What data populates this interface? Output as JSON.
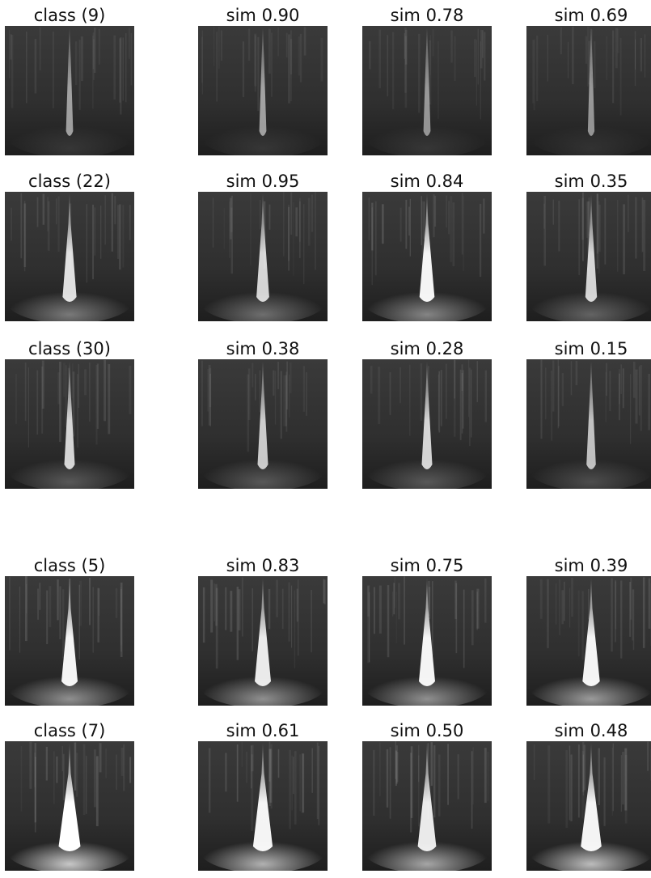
{
  "groups": [
    {
      "rows": [
        {
          "query": "class (9)",
          "matches": [
            "sim 0.90",
            "sim 0.78",
            "sim 0.69"
          ]
        },
        {
          "query": "class (22)",
          "matches": [
            "sim 0.95",
            "sim 0.84",
            "sim 0.35"
          ]
        },
        {
          "query": "class (30)",
          "matches": [
            "sim 0.38",
            "sim 0.28",
            "sim 0.15"
          ]
        }
      ]
    },
    {
      "rows": [
        {
          "query": "class (5)",
          "matches": [
            "sim 0.83",
            "sim 0.75",
            "sim 0.39"
          ]
        },
        {
          "query": "class (7)",
          "matches": [
            "sim 0.61",
            "sim 0.50",
            "sim 0.48"
          ]
        }
      ]
    }
  ],
  "colors": {
    "tile_background": "#2b2b2b",
    "spike": "#ffffff",
    "caption": "#111111"
  }
}
